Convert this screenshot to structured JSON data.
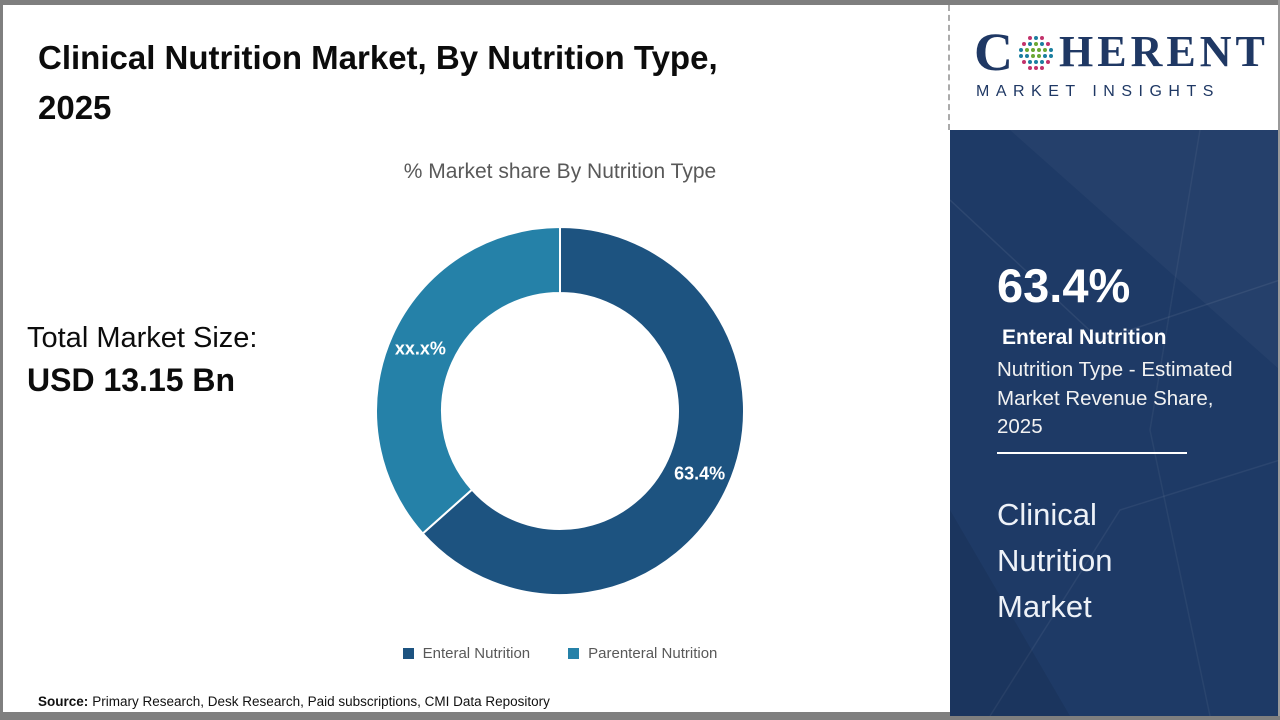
{
  "page": {
    "title_line1": "Clinical Nutrition Market, By Nutrition Type,",
    "title_line2": "2025",
    "source_label": "Source:",
    "source_text": "Primary Research, Desk Research, Paid subscriptions, CMI Data Repository"
  },
  "left_panel": {
    "total_label": "Total Market Size:",
    "total_value": "USD 13.15 Bn"
  },
  "chart_data": {
    "type": "pie",
    "donut": true,
    "title": "% Market share By Nutrition Type",
    "categories": [
      "Enteral Nutrition",
      "Parenteral Nutrition"
    ],
    "values": [
      63.4,
      36.6
    ],
    "labels": [
      "63.4%",
      "xx.x%"
    ],
    "colors": [
      "#1d5380",
      "#2581a8"
    ],
    "start_angle": 0,
    "legend_position": "bottom",
    "label_color": "#ffffff"
  },
  "sidebar": {
    "bg_color": "#1e3a66",
    "stat_value": "63.4%",
    "stat_label": "Enteral Nutrition",
    "stat_desc": "Nutrition Type - Estimated Market Revenue Share, 2025",
    "market_name": "Clinical Nutrition Market"
  },
  "logo": {
    "text_c": "C",
    "text_rest": "HERENT",
    "subtext": "MARKET INSIGHTS",
    "color": "#1f3864"
  }
}
